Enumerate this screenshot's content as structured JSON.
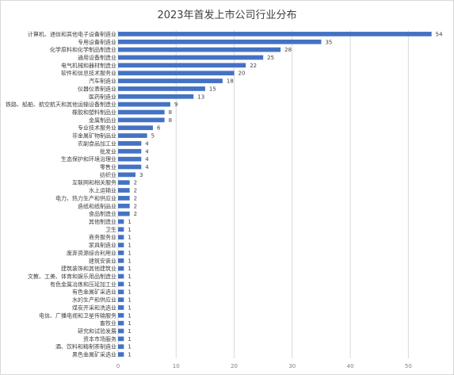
{
  "chart_data": {
    "type": "bar",
    "orientation": "horizontal",
    "title": "2023年首发上市公司行业分布",
    "xlabel": "",
    "ylabel": "",
    "xlim": [
      0,
      55
    ],
    "xticks": [
      0,
      10,
      20,
      30,
      40,
      50
    ],
    "grid": true,
    "legend": "none",
    "bar_color": "#4472c4",
    "categories": [
      "计算机、通信和其他电子设备制造业",
      "专用设备制造业",
      "化学原料和化学制品制造业",
      "通用设备制造业",
      "电气机械和器材制造业",
      "软件和信息技术服务业",
      "汽车制造业",
      "仪器仪表制造业",
      "医药制造业",
      "铁路、船舶、航空航天和其他运输设备制造业",
      "橡胶和塑料制品业",
      "金属制品业",
      "专业技术服务业",
      "非金属矿物制品业",
      "农副食品加工业",
      "批发业",
      "生态保护和环境治理业",
      "零售业",
      "纺织业",
      "互联网和相关服务",
      "水上运输业",
      "电力、热力生产和供应业",
      "造纸和纸制品业",
      "食品制造业",
      "其他制造业",
      "卫生",
      "商务服务业",
      "家具制造业",
      "废弃资源综合利用业",
      "建筑安装业",
      "建筑装饰和其他建筑业",
      "文教、工美、体育和娱乐用品制造业",
      "有色金属冶炼和压延加工业",
      "有色金属矿采选业",
      "水的生产和供应业",
      "煤炭开采和洗选业",
      "电信、广播电视和卫星传输服务",
      "畜牧业",
      "研究和试验发展",
      "资本市场服务",
      "酒、饮料和精制茶制造业",
      "黑色金属矿采选业"
    ],
    "values": [
      54,
      35,
      28,
      25,
      22,
      20,
      18,
      15,
      13,
      9,
      8,
      8,
      6,
      5,
      4,
      4,
      4,
      4,
      3,
      2,
      2,
      2,
      2,
      2,
      1,
      1,
      1,
      1,
      1,
      1,
      1,
      1,
      1,
      1,
      1,
      1,
      1,
      1,
      1,
      1,
      1,
      1
    ]
  }
}
